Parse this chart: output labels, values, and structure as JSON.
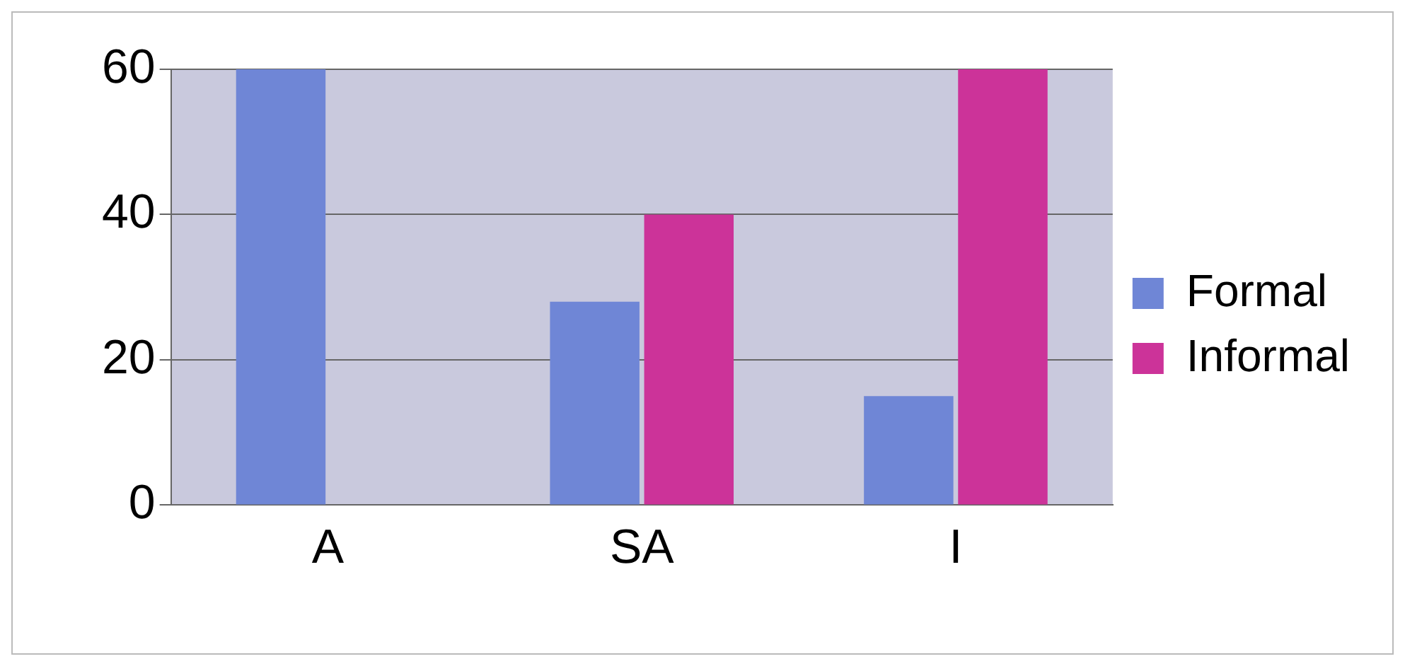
{
  "chart_data": {
    "type": "bar",
    "categories": [
      "A",
      "SA",
      "I"
    ],
    "series": [
      {
        "name": "Formal",
        "color": "#6f86d6",
        "values": [
          60,
          28,
          15
        ]
      },
      {
        "name": "Informal",
        "color": "#cc3399",
        "values": [
          null,
          40,
          60
        ]
      }
    ],
    "ylim": [
      0,
      60
    ],
    "yticks": [
      0,
      20,
      40,
      60
    ],
    "grid": "y",
    "legend": "right"
  }
}
